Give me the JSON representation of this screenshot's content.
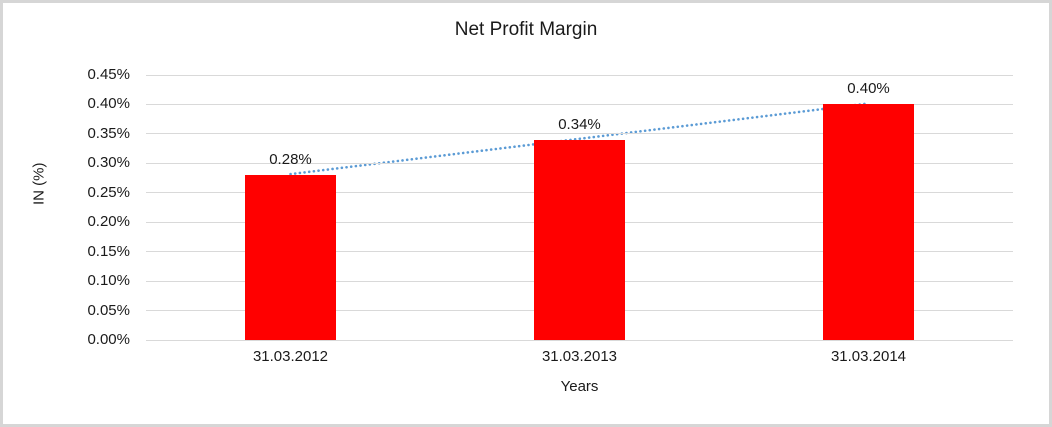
{
  "chart_data": {
    "type": "bar",
    "title": "Net Profit Margin",
    "xlabel": "Years",
    "ylabel": "IN (%)",
    "categories": [
      "31.03.2012",
      "31.03.2013",
      "31.03.2014"
    ],
    "values": [
      0.28,
      0.34,
      0.4
    ],
    "data_labels": [
      "0.28%",
      "0.34%",
      "0.40%"
    ],
    "ytick_values": [
      0.0,
      0.05,
      0.1,
      0.15,
      0.2,
      0.25,
      0.3,
      0.35,
      0.4,
      0.45
    ],
    "ytick_labels": [
      "0.00%",
      "0.05%",
      "0.10%",
      "0.15%",
      "0.20%",
      "0.25%",
      "0.30%",
      "0.35%",
      "0.40%",
      "0.45%"
    ],
    "ylim": [
      0,
      0.45
    ],
    "grid": true,
    "legend": "none",
    "colors": {
      "bar": "#ff0000",
      "trendline": "#5b9bd5",
      "gridline": "#d9d9d9",
      "text": "#1a1a1a",
      "frame_border": "#d6d6d6"
    },
    "trendline": {
      "type": "linear",
      "style": "dotted",
      "from_category": "31.03.2012",
      "to_category": "31.03.2014"
    }
  }
}
